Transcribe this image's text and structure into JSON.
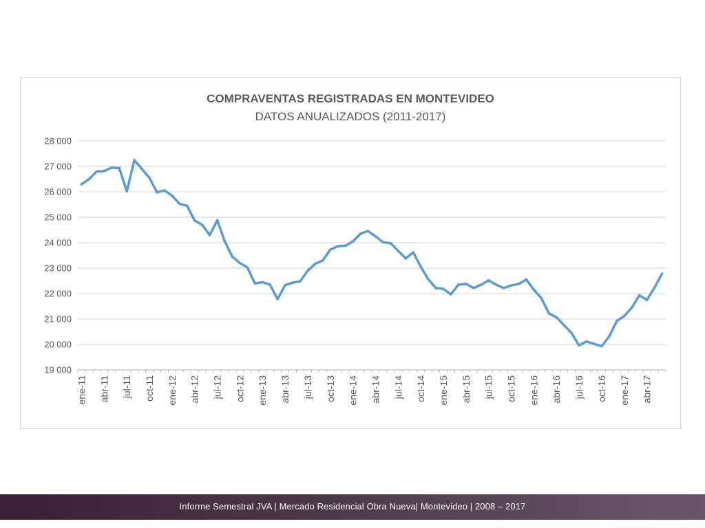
{
  "footer": {
    "text": "Informe Semestral JVA | Mercado Residencial Obra Nueva| Montevideo | 2008 – 2017"
  },
  "colors": {
    "line": "#5b9bd5",
    "grid": "#d9d9d9",
    "text": "#595959",
    "footer_bg": "#4f3a4a"
  },
  "chart_data": {
    "type": "line",
    "title": "COMPRAVENTAS REGISTRADAS EN MONTEVIDEO",
    "subtitle": "DATOS ANUALIZADOS (2011-2017)",
    "xlabel": "",
    "ylabel": "",
    "ylim": [
      19000,
      28000
    ],
    "yticks": [
      19000,
      20000,
      21000,
      22000,
      23000,
      24000,
      25000,
      26000,
      27000,
      28000
    ],
    "ytick_labels": [
      "19 000",
      "20 000",
      "21 000",
      "22 000",
      "23 000",
      "24 000",
      "25 000",
      "26 000",
      "27 000",
      "28 000"
    ],
    "xtick_labels": [
      "ene-11",
      "abr-11",
      "jul-11",
      "oct-11",
      "ene-12",
      "abr-12",
      "jul-12",
      "oct-12",
      "ene-13",
      "abr-13",
      "jul-13",
      "oct-13",
      "ene-14",
      "abr-14",
      "jul-14",
      "oct-14",
      "ene-15",
      "abr-15",
      "jul-15",
      "oct-15",
      "ene-16",
      "abr-16",
      "jul-16",
      "oct-16",
      "ene-17",
      "abr-17"
    ],
    "grid": true,
    "legend": "none",
    "series": [
      {
        "x": [
          "ene-11",
          "feb-11",
          "mar-11",
          "abr-11",
          "may-11",
          "jun-11",
          "jul-11",
          "ago-11",
          "sep-11",
          "oct-11",
          "nov-11",
          "dic-11",
          "ene-12",
          "feb-12",
          "mar-12",
          "abr-12",
          "may-12",
          "jun-12",
          "jul-12",
          "ago-12",
          "sep-12",
          "oct-12",
          "nov-12",
          "dic-12",
          "ene-13",
          "feb-13",
          "mar-13",
          "abr-13",
          "may-13",
          "jun-13",
          "jul-13",
          "ago-13",
          "sep-13",
          "oct-13",
          "nov-13",
          "dic-13",
          "ene-14",
          "feb-14",
          "mar-14",
          "abr-14",
          "may-14",
          "jun-14",
          "jul-14",
          "ago-14",
          "sep-14",
          "oct-14",
          "nov-14",
          "dic-14",
          "ene-15",
          "feb-15",
          "mar-15",
          "abr-15",
          "may-15",
          "jun-15",
          "jul-15",
          "ago-15",
          "sep-15",
          "oct-15",
          "nov-15",
          "dic-15",
          "ene-16",
          "feb-16",
          "mar-16",
          "abr-16",
          "may-16",
          "jun-16",
          "jul-16",
          "ago-16",
          "sep-16",
          "oct-16",
          "nov-16",
          "dic-16",
          "ene-17",
          "feb-17",
          "mar-17",
          "abr-17",
          "may-17",
          "jun-17"
        ],
        "values": [
          26300,
          26500,
          26800,
          26820,
          26950,
          26930,
          26020,
          27250,
          26900,
          26550,
          25980,
          26050,
          25850,
          25530,
          25450,
          24870,
          24700,
          24300,
          24880,
          24050,
          23450,
          23200,
          23030,
          22400,
          22450,
          22350,
          21780,
          22330,
          22430,
          22480,
          22900,
          23170,
          23300,
          23730,
          23860,
          23880,
          24050,
          24350,
          24460,
          24250,
          24020,
          23980,
          23680,
          23380,
          23620,
          23050,
          22560,
          22220,
          22180,
          21970,
          22350,
          22380,
          22220,
          22350,
          22520,
          22350,
          22220,
          22320,
          22380,
          22550,
          22150,
          21820,
          21220,
          21070,
          20760,
          20450,
          19960,
          20120,
          20020,
          19930,
          20320,
          20920,
          21120,
          21450,
          21930,
          21750,
          22230,
          22780
        ]
      }
    ]
  }
}
